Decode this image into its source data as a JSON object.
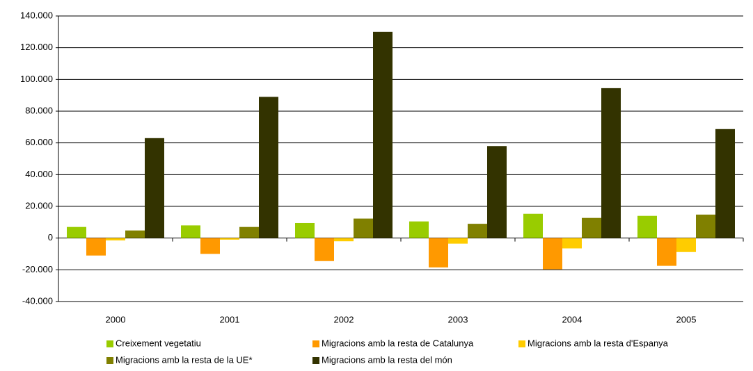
{
  "chart_data": {
    "type": "bar",
    "categories": [
      "2000",
      "2001",
      "2002",
      "2003",
      "2004",
      "2005"
    ],
    "series": [
      {
        "name": "Creixement vegetatiu",
        "color": "#99cc00",
        "values": [
          7000,
          8000,
          9500,
          10500,
          15300,
          14000
        ]
      },
      {
        "name": "Migracions amb la resta de Catalunya",
        "color": "#ff9900",
        "values": [
          -11000,
          -10000,
          -14500,
          -18500,
          -19700,
          -17500
        ]
      },
      {
        "name": "Migracions amb la resta d'Espanya",
        "color": "#ffcc00",
        "values": [
          -1500,
          -1000,
          -2000,
          -3500,
          -6500,
          -8800
        ]
      },
      {
        "name": "Migracions amb la resta de la UE*",
        "color": "#808000",
        "values": [
          4800,
          7000,
          12300,
          9000,
          12700,
          14800
        ]
      },
      {
        "name": "Migracions amb la resta del món",
        "color": "#333300",
        "values": [
          63000,
          89000,
          130000,
          58000,
          94500,
          68700
        ]
      }
    ],
    "ylim": [
      -40000,
      140000
    ],
    "yticks": [
      {
        "value": -40000,
        "label": "-40.000"
      },
      {
        "value": -20000,
        "label": "-20.000"
      },
      0,
      {
        "value": 20000,
        "label": "20.000"
      },
      {
        "value": 40000,
        "label": "40.000"
      },
      {
        "value": 60000,
        "label": "60.000"
      },
      {
        "value": 80000,
        "label": "80.000"
      },
      {
        "value": 100000,
        "label": "100.000"
      },
      {
        "value": 120000,
        "label": "120.000"
      },
      {
        "value": 140000,
        "label": "140.000"
      }
    ],
    "grid": true,
    "legend": "bottom"
  }
}
